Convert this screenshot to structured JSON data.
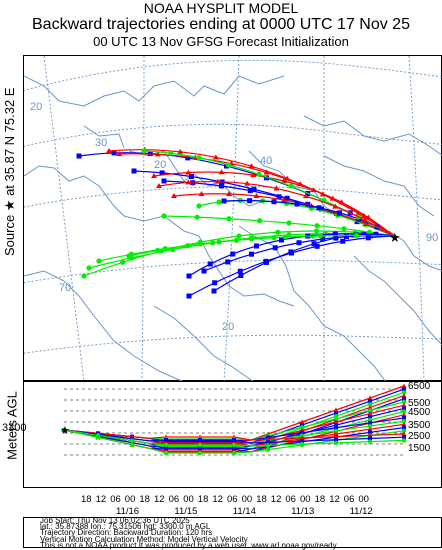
{
  "header": {
    "line1": "NOAA HYSPLIT MODEL",
    "line2": "Backward trajectories ending at 0000 UTC 17 Nov 25",
    "line3": "00 UTC 13 Nov    GFSG  Forecast Initialization"
  },
  "side_label": "Source ★ at   35.87 N   75.32 E",
  "map": {
    "grid_labels": [
      {
        "text": "20"
      },
      {
        "text": "30"
      },
      {
        "text": "20"
      },
      {
        "text": "40"
      },
      {
        "text": "90"
      },
      {
        "text": "70"
      },
      {
        "text": "20"
      }
    ],
    "source_marker": "star-icon",
    "colors": {
      "red": "#ff0000",
      "blue": "#0000ff",
      "green": "#00ee00",
      "grid": "#6b96c8",
      "coast": "#6b96c8"
    }
  },
  "profile": {
    "ylabel": "Meters AGL",
    "start_height_label": "3300",
    "y_ticks": [
      "6500",
      "5500",
      "4500",
      "3500",
      "2500",
      "1500"
    ],
    "x_ticks_hours": [
      "18",
      "12",
      "06",
      "00",
      "18",
      "12",
      "06",
      "00",
      "18",
      "12",
      "06",
      "00",
      "18",
      "12",
      "06",
      "00",
      "18",
      "12",
      "06",
      "00"
    ],
    "x_ticks_dates": [
      "11/16",
      "11/15",
      "11/14",
      "11/13",
      "11/12"
    ]
  },
  "info": {
    "line1": "Job Start: Thu Nov 13 06:02:36 UTC 2025",
    "line2": "lat.: 35.87388   lon.: 75.31506   hgt: 3300.0 m AGL",
    "line3": "Trajectory Direction: Backward       Duration: 120 hrs",
    "line4": "Vertical Motion Calculation Method: Model Vertical Velocity",
    "line5": "This is not a NOAA product.It was produced by a web user. www.arl.noaa.gov/ready"
  }
}
